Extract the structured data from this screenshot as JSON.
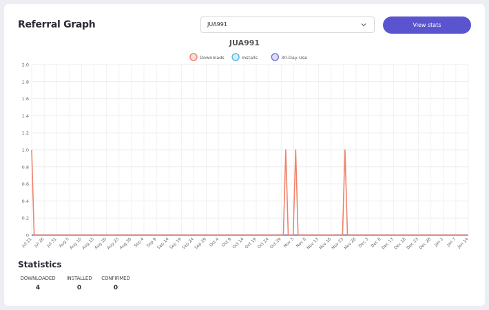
{
  "header": {
    "title": "Referral Graph"
  },
  "select": {
    "value": "JUA991"
  },
  "actions": {
    "view_stats_label": "View stats"
  },
  "colors": {
    "downloads": "#f0836a",
    "installs": "#5bb8e8",
    "thirty_day_use": "#7a76d6",
    "accent": "#5a54cf"
  },
  "chart_data": {
    "type": "line",
    "title": "JUA991",
    "ylim": [
      0,
      2.0
    ],
    "yticks": [
      "0",
      "0.2",
      "0.4",
      "0.6",
      "0.8",
      "1.0",
      "1.2",
      "1.4",
      "1.6",
      "1.8",
      "2.0"
    ],
    "xtick_labels": [
      "Jul 21",
      "Jul 26",
      "Jul 31",
      "Aug 5",
      "Aug 10",
      "Aug 15",
      "Aug 20",
      "Aug 25",
      "Aug 30",
      "Sep 4",
      "Sep 9",
      "Sep 14",
      "Sep 19",
      "Sep 24",
      "Sep 29",
      "Oct 4",
      "Oct 9",
      "Oct 14",
      "Oct 19",
      "Oct 24",
      "Oct 29",
      "Nov 3",
      "Nov 8",
      "Nov 13",
      "Nov 18",
      "Nov 23",
      "Nov 28",
      "Dec 3",
      "Dec 8",
      "Dec 13",
      "Dec 18",
      "Dec 23",
      "Dec 28",
      "Jan 2",
      "Jan 7",
      "Jan 14"
    ],
    "x_start": "Jul 21",
    "x_end": "Jan 14",
    "grid": true,
    "legend_placement": "top-center",
    "series": [
      {
        "name": "Downloads",
        "points": [
          [
            "Jul 21",
            1
          ],
          [
            "Jul 22",
            0
          ],
          [
            "Oct 31",
            0
          ],
          [
            "Nov 1",
            1
          ],
          [
            "Nov 2",
            0
          ],
          [
            "Nov 4",
            0
          ],
          [
            "Nov 5",
            1
          ],
          [
            "Nov 6",
            0
          ],
          [
            "Nov 24",
            0
          ],
          [
            "Nov 25",
            1
          ],
          [
            "Nov 26",
            0
          ],
          [
            "Jan 14",
            0
          ]
        ]
      },
      {
        "name": "Installs",
        "points": [
          [
            "Jul 21",
            0
          ],
          [
            "Jan 14",
            0
          ]
        ]
      },
      {
        "name": "30-Day-Use",
        "points": [
          [
            "Jul 21",
            0
          ],
          [
            "Jan 14",
            0
          ]
        ]
      }
    ]
  },
  "statistics": {
    "title": "Statistics",
    "items": [
      {
        "label": "DOWNLOADED",
        "value": "4"
      },
      {
        "label": "INSTALLED",
        "value": "0"
      },
      {
        "label": "CONFIRMED",
        "value": "0"
      }
    ]
  }
}
